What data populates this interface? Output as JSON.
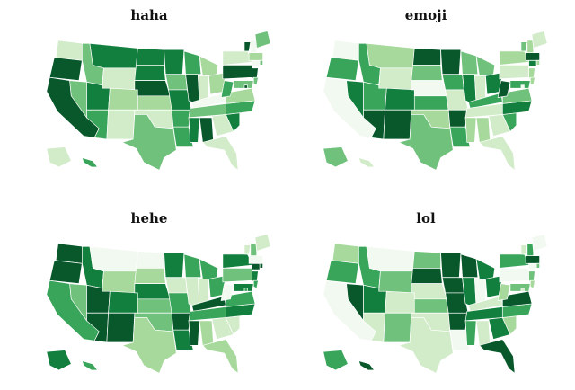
{
  "maps": [
    {
      "title": "haha",
      "palette": [
        "#f2f9f0",
        "#d2ecca",
        "#a6d99b",
        "#6fc17c",
        "#38a55a",
        "#137f3e",
        "#08582b"
      ],
      "states": [
        1,
        6,
        6,
        3,
        3,
        5,
        1,
        5,
        4,
        2,
        1,
        5,
        5,
        6,
        2,
        1,
        3,
        5,
        3,
        5,
        4,
        4,
        4,
        6,
        2,
        1,
        2,
        0,
        3,
        5,
        6,
        1,
        1,
        5,
        4,
        2,
        4,
        6,
        1,
        6,
        3,
        0,
        2,
        6,
        0,
        3,
        1,
        4,
        3,
        3,
        6
      ]
    },
    {
      "title": "emoji",
      "palette": [
        "#f2f9f0",
        "#d2ecca",
        "#a6d99b",
        "#6fc17c",
        "#38a55a",
        "#137f3e",
        "#08582b"
      ],
      "states": [
        0,
        4,
        0,
        5,
        4,
        2,
        1,
        4,
        6,
        5,
        6,
        6,
        3,
        0,
        4,
        2,
        3,
        6,
        4,
        1,
        6,
        4,
        3,
        5,
        3,
        1,
        5,
        4,
        1,
        2,
        2,
        1,
        1,
        4,
        5,
        3,
        6,
        1,
        2,
        2,
        4,
        5,
        6,
        3,
        2,
        1,
        3,
        1,
        2,
        2,
        0
      ]
    },
    {
      "title": "hehe",
      "palette": [
        "#f2f9f0",
        "#d2ecca",
        "#a6d99b",
        "#6fc17c",
        "#38a55a",
        "#137f3e",
        "#08582b"
      ],
      "states": [
        6,
        6,
        4,
        3,
        5,
        0,
        2,
        6,
        6,
        5,
        6,
        0,
        2,
        5,
        3,
        3,
        2,
        5,
        1,
        4,
        6,
        5,
        4,
        1,
        4,
        1,
        4,
        6,
        4,
        6,
        2,
        1,
        2,
        1,
        5,
        4,
        0,
        3,
        5,
        5,
        5,
        6,
        0,
        1,
        3,
        1,
        5,
        4,
        4,
        6,
        4
      ]
    },
    {
      "title": "lol",
      "palette": [
        "#f2f9f0",
        "#d2ecca",
        "#a6d99b",
        "#6fc17c",
        "#38a55a",
        "#137f3e",
        "#08582b"
      ],
      "states": [
        2,
        4,
        0,
        6,
        4,
        0,
        3,
        5,
        1,
        1,
        3,
        3,
        6,
        1,
        3,
        1,
        1,
        6,
        6,
        6,
        6,
        0,
        6,
        5,
        5,
        0,
        5,
        1,
        5,
        4,
        1,
        5,
        6,
        2,
        4,
        6,
        2,
        0,
        4,
        3,
        3,
        0,
        6,
        1,
        4,
        0,
        4,
        6,
        2,
        3,
        1
      ]
    }
  ]
}
